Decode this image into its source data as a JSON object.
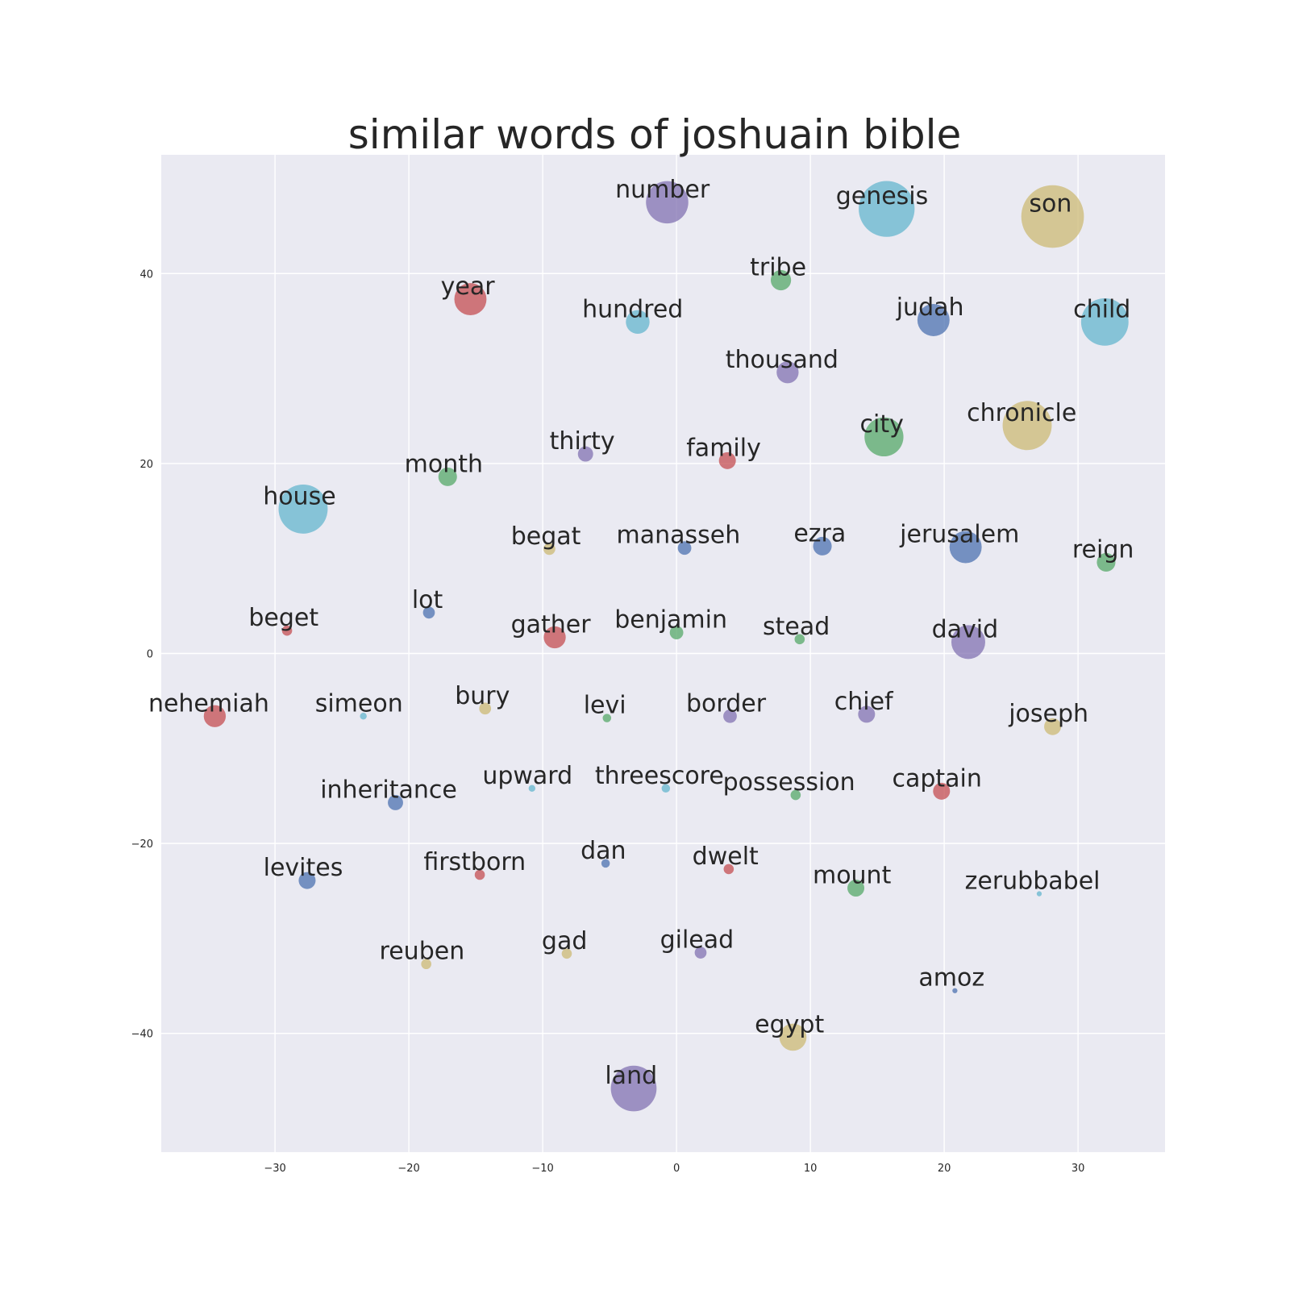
{
  "chart_data": {
    "type": "scatter",
    "title": "similar words of joshuain bible",
    "xlabel": "",
    "ylabel": "",
    "xlim": [
      -38.5,
      36.5
    ],
    "ylim": [
      -52.5,
      52.5
    ],
    "xticks": [
      -30,
      -20,
      -10,
      0,
      10,
      20,
      30
    ],
    "yticks": [
      -40,
      -20,
      0,
      20,
      40
    ],
    "grid": true,
    "colors": {
      "purple": "#8172b2",
      "cyan": "#64b5cd",
      "tan": "#ccb974",
      "green": "#55a868",
      "red": "#c44e52",
      "blue": "#4c72b0",
      "background": "#eaeaf2"
    },
    "points": [
      {
        "label": "number",
        "x": -0.7,
        "y": 47.5,
        "size": 25,
        "color": "purple"
      },
      {
        "label": "genesis",
        "x": 15.7,
        "y": 46.8,
        "size": 33,
        "color": "cyan"
      },
      {
        "label": "son",
        "x": 28.1,
        "y": 46.0,
        "size": 37,
        "color": "tan"
      },
      {
        "label": "tribe",
        "x": 7.8,
        "y": 39.3,
        "size": 12,
        "color": "green"
      },
      {
        "label": "year",
        "x": -15.4,
        "y": 37.3,
        "size": 19,
        "color": "red"
      },
      {
        "label": "hundred",
        "x": -2.9,
        "y": 34.9,
        "size": 14,
        "color": "cyan"
      },
      {
        "label": "judah",
        "x": 19.2,
        "y": 35.1,
        "size": 19,
        "color": "blue"
      },
      {
        "label": "child",
        "x": 32.0,
        "y": 34.9,
        "size": 28,
        "color": "cyan"
      },
      {
        "label": "thousand",
        "x": 8.3,
        "y": 29.6,
        "size": 13,
        "color": "purple"
      },
      {
        "label": "thirty",
        "x": -6.8,
        "y": 21.0,
        "size": 9,
        "color": "purple"
      },
      {
        "label": "family",
        "x": 3.8,
        "y": 20.3,
        "size": 10,
        "color": "red"
      },
      {
        "label": "city",
        "x": 15.5,
        "y": 22.8,
        "size": 23,
        "color": "green"
      },
      {
        "label": "chronicle",
        "x": 26.2,
        "y": 24.0,
        "size": 29,
        "color": "tan"
      },
      {
        "label": "month",
        "x": -17.1,
        "y": 18.6,
        "size": 11,
        "color": "green"
      },
      {
        "label": "house",
        "x": -27.9,
        "y": 15.2,
        "size": 29,
        "color": "cyan"
      },
      {
        "label": "begat",
        "x": -9.5,
        "y": 11.0,
        "size": 7,
        "color": "tan"
      },
      {
        "label": "manasseh",
        "x": 0.6,
        "y": 11.1,
        "size": 8,
        "color": "blue"
      },
      {
        "label": "ezra",
        "x": 10.9,
        "y": 11.3,
        "size": 11,
        "color": "blue"
      },
      {
        "label": "jerusalem",
        "x": 21.6,
        "y": 11.2,
        "size": 19,
        "color": "blue"
      },
      {
        "label": "reign",
        "x": 32.1,
        "y": 9.6,
        "size": 11,
        "color": "green"
      },
      {
        "label": "lot",
        "x": -18.5,
        "y": 4.3,
        "size": 7,
        "color": "blue"
      },
      {
        "label": "beget",
        "x": -29.1,
        "y": 2.4,
        "size": 6,
        "color": "red"
      },
      {
        "label": "gather",
        "x": -9.1,
        "y": 1.7,
        "size": 13,
        "color": "red"
      },
      {
        "label": "benjamin",
        "x": 0.0,
        "y": 2.2,
        "size": 8,
        "color": "green"
      },
      {
        "label": "stead",
        "x": 9.2,
        "y": 1.5,
        "size": 6,
        "color": "green"
      },
      {
        "label": "david",
        "x": 21.8,
        "y": 1.2,
        "size": 20,
        "color": "purple"
      },
      {
        "label": "nehemiah",
        "x": -34.5,
        "y": -6.6,
        "size": 13,
        "color": "red"
      },
      {
        "label": "simeon",
        "x": -23.4,
        "y": -6.6,
        "size": 4,
        "color": "cyan"
      },
      {
        "label": "bury",
        "x": -14.3,
        "y": -5.8,
        "size": 7,
        "color": "tan"
      },
      {
        "label": "levi",
        "x": -5.2,
        "y": -6.8,
        "size": 5,
        "color": "green"
      },
      {
        "label": "border",
        "x": 4.0,
        "y": -6.6,
        "size": 8,
        "color": "purple"
      },
      {
        "label": "chief",
        "x": 14.2,
        "y": -6.4,
        "size": 10,
        "color": "purple"
      },
      {
        "label": "joseph",
        "x": 28.1,
        "y": -7.7,
        "size": 10,
        "color": "tan"
      },
      {
        "label": "inheritance",
        "x": -21.0,
        "y": -15.7,
        "size": 9,
        "color": "blue"
      },
      {
        "label": "upward",
        "x": -10.8,
        "y": -14.2,
        "size": 4,
        "color": "cyan"
      },
      {
        "label": "threescore",
        "x": -0.8,
        "y": -14.2,
        "size": 5,
        "color": "cyan"
      },
      {
        "label": "possession",
        "x": 8.9,
        "y": -14.9,
        "size": 6,
        "color": "green"
      },
      {
        "label": "captain",
        "x": 19.8,
        "y": -14.5,
        "size": 10,
        "color": "red"
      },
      {
        "label": "levites",
        "x": -27.6,
        "y": -23.9,
        "size": 10,
        "color": "blue"
      },
      {
        "label": "firstborn",
        "x": -14.7,
        "y": -23.3,
        "size": 6,
        "color": "red"
      },
      {
        "label": "dan",
        "x": -5.3,
        "y": -22.1,
        "size": 5,
        "color": "blue"
      },
      {
        "label": "dwelt",
        "x": 3.9,
        "y": -22.7,
        "size": 6,
        "color": "red"
      },
      {
        "label": "mount",
        "x": 13.4,
        "y": -24.7,
        "size": 10,
        "color": "green"
      },
      {
        "label": "zerubbabel",
        "x": 27.1,
        "y": -25.3,
        "size": 3,
        "color": "cyan"
      },
      {
        "label": "reuben",
        "x": -18.7,
        "y": -32.7,
        "size": 6,
        "color": "tan"
      },
      {
        "label": "gad",
        "x": -8.2,
        "y": -31.6,
        "size": 6,
        "color": "tan"
      },
      {
        "label": "gilead",
        "x": 1.8,
        "y": -31.5,
        "size": 7,
        "color": "purple"
      },
      {
        "label": "amoz",
        "x": 20.8,
        "y": -35.5,
        "size": 3,
        "color": "blue"
      },
      {
        "label": "egypt",
        "x": 8.7,
        "y": -40.4,
        "size": 16,
        "color": "tan"
      },
      {
        "label": "land",
        "x": -3.2,
        "y": -45.8,
        "size": 27,
        "color": "purple"
      }
    ]
  }
}
